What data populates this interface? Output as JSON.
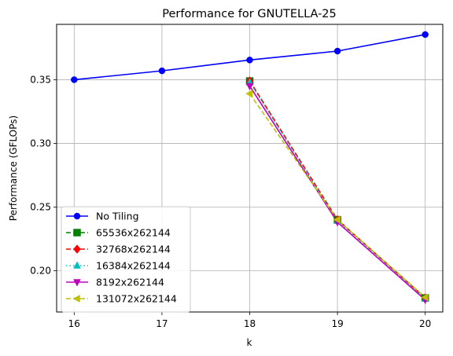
{
  "chart_data": {
    "type": "line",
    "title": "Performance for GNUTELLA-25",
    "xlabel": "k",
    "ylabel": "Performance (GFLOPs)",
    "x_ticks": [
      "16",
      "17",
      "18",
      "19",
      "20"
    ],
    "y_ticks": [
      "0.20",
      "0.25",
      "0.30",
      "0.35"
    ],
    "xlim": [
      15.8,
      20.2
    ],
    "ylim": [
      0.1675,
      0.3935
    ],
    "grid": true,
    "legend_position": "lower-left",
    "series": [
      {
        "name": "No Tiling",
        "color": "#0000ff",
        "marker": "circle",
        "dash": "solid",
        "x": [
          16,
          17,
          18,
          19,
          20
        ],
        "values": [
          0.35,
          0.357,
          0.3655,
          0.3725,
          0.3855
        ]
      },
      {
        "name": "65536x262144",
        "color": "#008000",
        "marker": "square",
        "dash": "dashed",
        "x": [
          18,
          19,
          20
        ],
        "values": [
          0.349,
          0.24,
          0.1785
        ]
      },
      {
        "name": "32768x262144",
        "color": "#ff0000",
        "marker": "diamond",
        "dash": "dashed",
        "x": [
          18,
          19,
          20
        ],
        "values": [
          0.349,
          0.24,
          0.1785
        ]
      },
      {
        "name": "16384x262144",
        "color": "#00bfbf",
        "marker": "triangle-up",
        "dash": "dotted",
        "x": [
          18,
          19,
          20
        ],
        "values": [
          0.348,
          0.239,
          0.178
        ]
      },
      {
        "name": "8192x262144",
        "color": "#bf00bf",
        "marker": "triangle-down",
        "dash": "solid",
        "x": [
          18,
          19,
          20
        ],
        "values": [
          0.345,
          0.238,
          0.177
        ]
      },
      {
        "name": "131072x262144",
        "color": "#bfbf00",
        "marker": "triangle-left",
        "dash": "dashed",
        "x": [
          18,
          19,
          20
        ],
        "values": [
          0.339,
          0.24,
          0.179
        ]
      }
    ]
  }
}
